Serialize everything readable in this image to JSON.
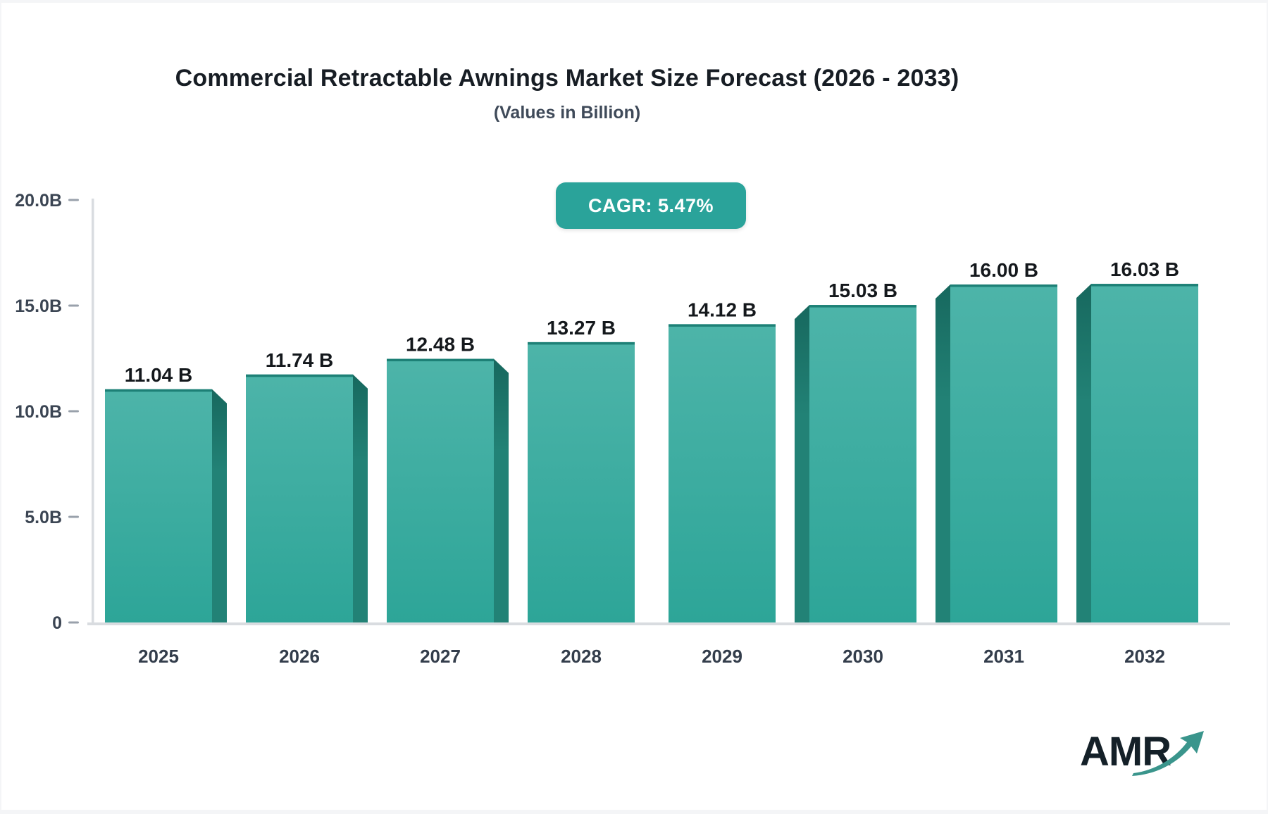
{
  "page": {
    "title": "Commercial Retractable Awnings Market Size Forecast (2026 - 2033)",
    "subtitle": "(Values in Billion)",
    "cagr_label": "CAGR: 5.47%",
    "logo_text": "AMR",
    "logo_arrow_icon": "growth-arrow-icon",
    "accent_color": "#2aa39a"
  },
  "chart_data": {
    "type": "bar",
    "title": "Commercial Retractable Awnings Market Size Forecast (2026 - 2033)",
    "subtitle": "(Values in Billion)",
    "annotation": "CAGR: 5.47%",
    "categories": [
      "2025",
      "2026",
      "2027",
      "2028",
      "2029",
      "2030",
      "2031",
      "2032"
    ],
    "values": [
      11.04,
      11.74,
      12.48,
      13.27,
      14.12,
      15.03,
      16.0,
      16.03
    ],
    "value_labels": [
      "11.04 B",
      "11.74 B",
      "12.48 B",
      "13.27 B",
      "14.12 B",
      "15.03 B",
      "16.00 B",
      "16.03 B"
    ],
    "y_ticks": [
      {
        "value": 20,
        "label": "20.0B"
      },
      {
        "value": 15,
        "label": "15.0B"
      },
      {
        "value": 10,
        "label": "10.0B"
      },
      {
        "value": 5,
        "label": "5.0B"
      },
      {
        "value": 0,
        "label": "0"
      }
    ],
    "ylim": [
      0,
      20
    ],
    "grid": false,
    "legend": false,
    "colors": {
      "bar_face_top": "#4db4a9",
      "bar_face_bottom": "#2da598",
      "bar_top_edge": "#1d8076",
      "bar_side_top": "#17685e",
      "bar_side_bottom": "#228276",
      "axis_line": "#d9dce0",
      "tick_dash": "#99a1ab",
      "tick_label": "#3b4553",
      "category_label": "#333d4b",
      "value_label": "#14181c"
    }
  }
}
